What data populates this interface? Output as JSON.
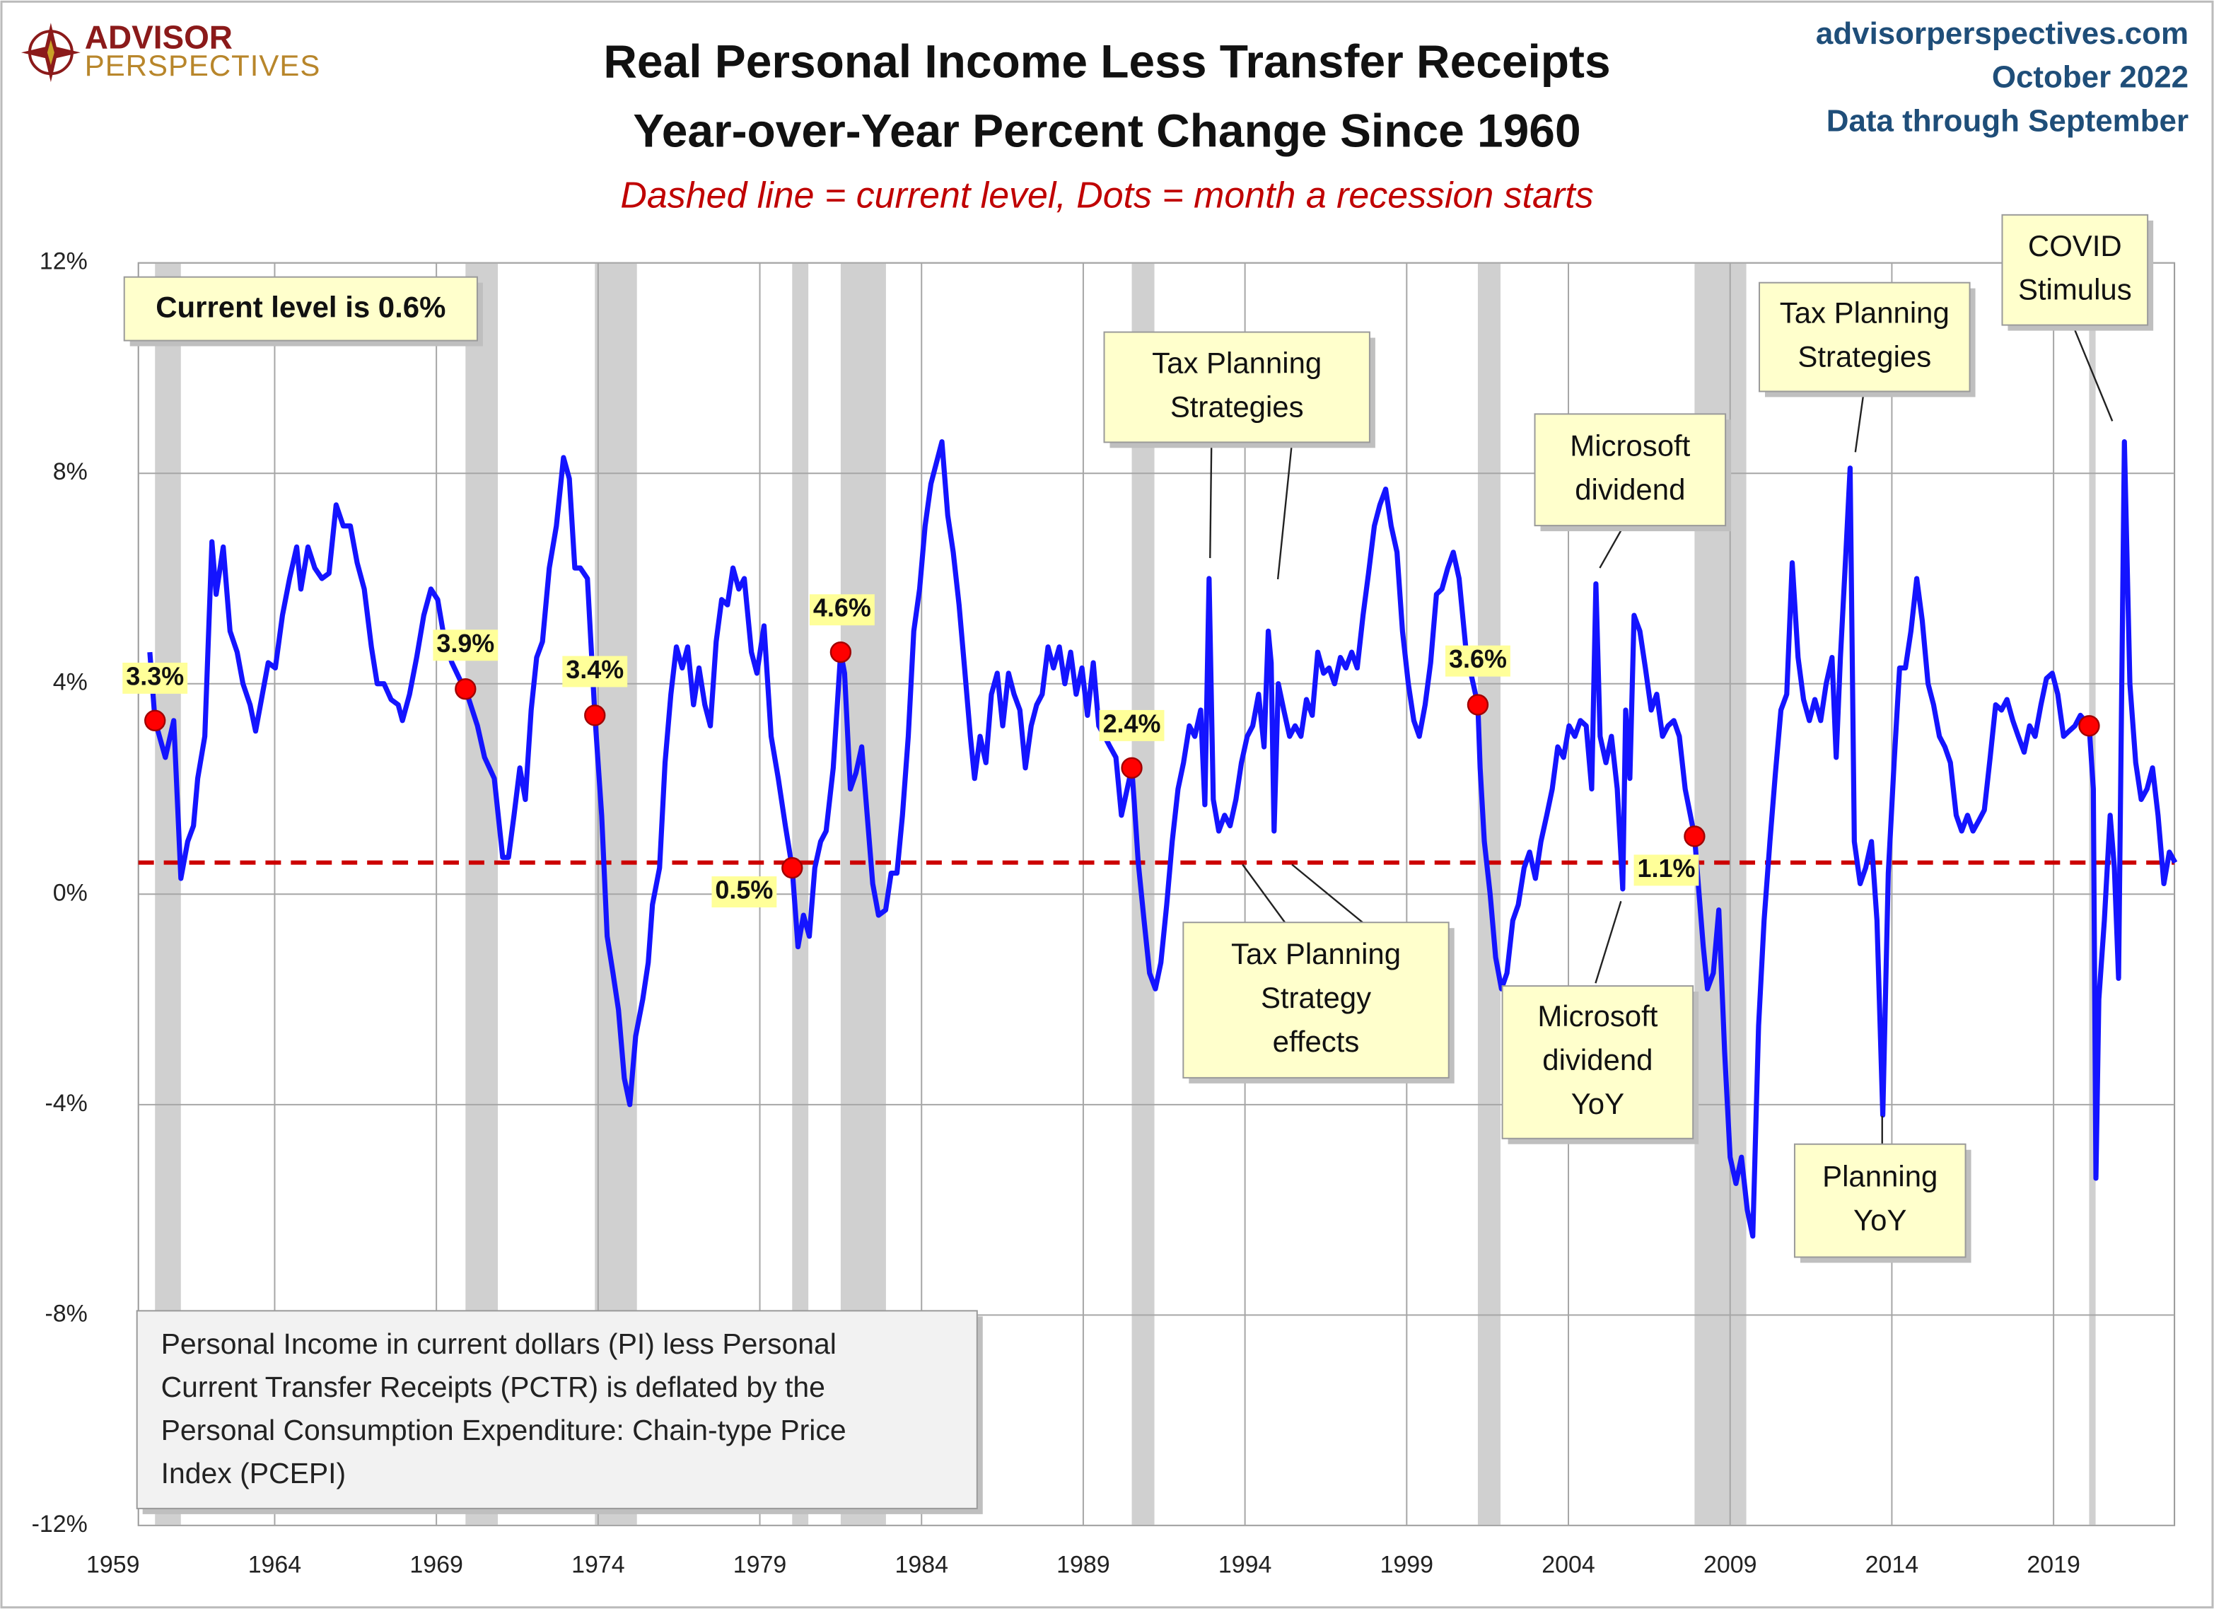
{
  "chart_data": {
    "type": "line",
    "logo": {
      "top": "ADVISOR",
      "bottom": "PERSPECTIVES"
    },
    "source": [
      "advisorperspectives.com",
      "October 2022",
      "Data through September"
    ],
    "title": [
      "Real Personal Income Less Transfer Receipts",
      "Year-over-Year Percent Change Since 1960"
    ],
    "subtitle": "Dashed line = current level, Dots = month a recession starts",
    "xlim": [
      1959,
      2023
    ],
    "ylim": [
      -12,
      12
    ],
    "xticks": [
      1959,
      1964,
      1969,
      1974,
      1979,
      1984,
      1989,
      1994,
      1999,
      2004,
      2009,
      2014,
      2019
    ],
    "yticks": [
      {
        "value": -12,
        "label": "-12%"
      },
      {
        "value": -8,
        "label": "-8%"
      },
      {
        "value": -4,
        "label": "-4%"
      },
      {
        "value": 0,
        "label": "0%"
      },
      {
        "value": 4,
        "label": "4%"
      },
      {
        "value": 8,
        "label": "8%"
      },
      {
        "value": 12,
        "label": "12%"
      }
    ],
    "grid": true,
    "x": [
      1960.14,
      1960.3,
      1960.62,
      1960.88,
      1961.1,
      1961.31,
      1961.49,
      1961.62,
      1961.84,
      1962.06,
      1962.19,
      1962.41,
      1962.62,
      1962.84,
      1963.02,
      1963.24,
      1963.41,
      1963.59,
      1963.8,
      1964.02,
      1964.24,
      1964.46,
      1964.68,
      1964.81,
      1965.03,
      1965.24,
      1965.46,
      1965.68,
      1965.9,
      1966.12,
      1966.34,
      1966.55,
      1966.77,
      1966.99,
      1967.17,
      1967.38,
      1967.6,
      1967.82,
      1967.95,
      1968.17,
      1968.39,
      1968.61,
      1968.83,
      1969.04,
      1969.26,
      1969.48,
      1969.79,
      1969.9,
      1970.27,
      1970.49,
      1970.79,
      1971.05,
      1971.23,
      1971.4,
      1971.58,
      1971.75,
      1971.93,
      1972.1,
      1972.28,
      1972.49,
      1972.71,
      1972.93,
      1973.11,
      1973.28,
      1973.45,
      1973.67,
      1973.9,
      1974.11,
      1974.28,
      1974.46,
      1974.63,
      1974.81,
      1974.98,
      1975.16,
      1975.38,
      1975.55,
      1975.68,
      1975.9,
      1976.07,
      1976.25,
      1976.42,
      1976.6,
      1976.77,
      1976.95,
      1977.12,
      1977.3,
      1977.47,
      1977.65,
      1977.82,
      1978.0,
      1978.17,
      1978.35,
      1978.52,
      1978.74,
      1978.91,
      1979.13,
      1979.35,
      1979.57,
      1979.79,
      1980.0,
      1980.18,
      1980.35,
      1980.53,
      1980.7,
      1980.88,
      1981.05,
      1981.27,
      1981.5,
      1981.62,
      1981.8,
      1981.97,
      1982.15,
      1982.32,
      1982.49,
      1982.67,
      1982.89,
      1983.06,
      1983.24,
      1983.41,
      1983.59,
      1983.76,
      1983.94,
      1984.11,
      1984.29,
      1984.46,
      1984.63,
      1984.81,
      1984.98,
      1985.16,
      1985.33,
      1985.51,
      1985.64,
      1985.81,
      1985.99,
      1986.16,
      1986.34,
      1986.51,
      1986.69,
      1986.86,
      1987.04,
      1987.21,
      1987.39,
      1987.56,
      1987.73,
      1987.91,
      1988.08,
      1988.26,
      1988.43,
      1988.61,
      1988.78,
      1988.96,
      1989.13,
      1989.31,
      1989.48,
      1989.66,
      1989.83,
      1990.01,
      1990.18,
      1990.5,
      1990.57,
      1990.7,
      1990.88,
      1991.05,
      1991.23,
      1991.4,
      1991.58,
      1991.75,
      1991.93,
      1992.1,
      1992.28,
      1992.45,
      1992.63,
      1992.76,
      1992.89,
      1993.02,
      1993.19,
      1993.37,
      1993.54,
      1993.72,
      1993.89,
      1994.07,
      1994.24,
      1994.42,
      1994.59,
      1994.72,
      1994.81,
      1994.9,
      1995.03,
      1995.2,
      1995.38,
      1995.55,
      1995.73,
      1995.9,
      1996.08,
      1996.25,
      1996.43,
      1996.6,
      1996.77,
      1996.95,
      1997.12,
      1997.3,
      1997.47,
      1997.65,
      1997.82,
      1998.0,
      1998.17,
      1998.35,
      1998.52,
      1998.7,
      1998.87,
      1999.05,
      1999.22,
      1999.39,
      1999.57,
      1999.74,
      1999.92,
      2000.09,
      2000.27,
      2000.44,
      2000.62,
      2000.84,
      2001.2,
      2001.27,
      2001.4,
      2001.58,
      2001.75,
      2001.93,
      2002.1,
      2002.28,
      2002.45,
      2002.63,
      2002.8,
      2002.98,
      2003.15,
      2003.33,
      2003.5,
      2003.67,
      2003.85,
      2004.02,
      2004.2,
      2004.37,
      2004.55,
      2004.72,
      2004.85,
      2004.98,
      2005.16,
      2005.33,
      2005.51,
      2005.68,
      2005.77,
      2005.9,
      2006.03,
      2006.21,
      2006.38,
      2006.56,
      2006.73,
      2006.91,
      2007.08,
      2007.26,
      2007.43,
      2007.61,
      2007.9,
      2008.04,
      2008.17,
      2008.3,
      2008.48,
      2008.65,
      2008.83,
      2009.0,
      2009.18,
      2009.35,
      2009.53,
      2009.7,
      2009.88,
      2010.05,
      2010.23,
      2010.4,
      2010.57,
      2010.75,
      2010.92,
      2011.1,
      2011.27,
      2011.45,
      2011.62,
      2011.8,
      2011.97,
      2012.15,
      2012.28,
      2012.41,
      2012.58,
      2012.71,
      2012.84,
      2013.02,
      2013.19,
      2013.37,
      2013.54,
      2013.72,
      2013.89,
      2014.07,
      2014.24,
      2014.42,
      2014.59,
      2014.77,
      2014.94,
      2015.12,
      2015.29,
      2015.47,
      2015.64,
      2015.81,
      2015.99,
      2016.16,
      2016.34,
      2016.51,
      2016.69,
      2016.86,
      2017.04,
      2017.21,
      2017.39,
      2017.56,
      2017.74,
      2017.91,
      2018.09,
      2018.26,
      2018.43,
      2018.61,
      2018.78,
      2018.96,
      2019.13,
      2019.31,
      2019.48,
      2019.66,
      2019.83,
      2020.1,
      2020.23,
      2020.31,
      2020.4,
      2020.57,
      2020.75,
      2020.88,
      2021.01,
      2021.19,
      2021.36,
      2021.54,
      2021.71,
      2021.89,
      2022.06,
      2022.23,
      2022.41,
      2022.58,
      2022.76
    ],
    "series": [
      {
        "color": "#1414ff",
        "values": [
          4.6,
          3.3,
          2.6,
          3.3,
          0.3,
          1.0,
          1.3,
          2.2,
          3.0,
          6.7,
          5.7,
          6.6,
          5.0,
          4.6,
          4.0,
          3.6,
          3.1,
          3.7,
          4.4,
          4.3,
          5.3,
          6.0,
          6.6,
          5.8,
          6.6,
          6.2,
          6.0,
          6.1,
          7.4,
          7.0,
          7.0,
          6.3,
          5.8,
          4.7,
          4.0,
          4.0,
          3.7,
          3.6,
          3.3,
          3.8,
          4.5,
          5.3,
          5.8,
          5.6,
          4.8,
          4.4,
          4.0,
          3.9,
          3.2,
          2.6,
          2.2,
          0.7,
          0.7,
          1.5,
          2.4,
          1.8,
          3.5,
          4.5,
          4.8,
          6.2,
          7.0,
          8.3,
          7.9,
          6.2,
          6.2,
          6.0,
          3.4,
          1.5,
          -0.8,
          -1.5,
          -2.2,
          -3.5,
          -4.0,
          -2.7,
          -2.0,
          -1.3,
          -0.2,
          0.5,
          2.5,
          3.8,
          4.7,
          4.3,
          4.7,
          3.6,
          4.3,
          3.6,
          3.2,
          4.8,
          5.6,
          5.5,
          6.2,
          5.8,
          6.0,
          4.6,
          4.2,
          5.1,
          3.0,
          2.2,
          1.3,
          0.5,
          -1.0,
          -0.4,
          -0.8,
          0.5,
          1.0,
          1.2,
          2.4,
          4.6,
          4.2,
          2.0,
          2.3,
          2.8,
          1.5,
          0.2,
          -0.4,
          -0.3,
          0.4,
          0.4,
          1.5,
          3.0,
          5.0,
          5.8,
          7.0,
          7.8,
          8.2,
          8.6,
          7.2,
          6.5,
          5.5,
          4.3,
          3.0,
          2.2,
          3.0,
          2.5,
          3.8,
          4.2,
          3.2,
          4.2,
          3.8,
          3.5,
          2.4,
          3.2,
          3.6,
          3.8,
          4.7,
          4.3,
          4.7,
          4.0,
          4.6,
          3.8,
          4.3,
          3.4,
          4.4,
          3.2,
          3.0,
          2.8,
          2.6,
          1.5,
          2.4,
          1.8,
          0.6,
          -0.5,
          -1.5,
          -1.8,
          -1.3,
          -0.2,
          1.0,
          2.0,
          2.5,
          3.2,
          3.0,
          3.5,
          1.7,
          6.0,
          1.8,
          1.2,
          1.5,
          1.3,
          1.8,
          2.5,
          3.0,
          3.2,
          3.8,
          2.8,
          5.0,
          4.4,
          1.2,
          4.0,
          3.5,
          3.0,
          3.2,
          3.0,
          3.7,
          3.4,
          4.6,
          4.2,
          4.3,
          4.0,
          4.5,
          4.3,
          4.6,
          4.3,
          5.3,
          6.1,
          7.0,
          7.4,
          7.7,
          7.0,
          6.5,
          5.0,
          4.0,
          3.3,
          3.0,
          3.6,
          4.4,
          5.7,
          5.8,
          6.2,
          6.5,
          6.0,
          4.6,
          3.6,
          2.4,
          1.0,
          0.0,
          -1.2,
          -1.8,
          -1.5,
          -0.5,
          -0.2,
          0.5,
          0.8,
          0.3,
          1.0,
          1.5,
          2.0,
          2.8,
          2.6,
          3.2,
          3.0,
          3.3,
          3.2,
          2.0,
          5.9,
          3.0,
          2.5,
          3.0,
          2.0,
          0.1,
          3.5,
          2.2,
          5.3,
          5.0,
          4.3,
          3.5,
          3.8,
          3.0,
          3.2,
          3.3,
          3.0,
          2.0,
          1.1,
          0.0,
          -1.0,
          -1.8,
          -1.5,
          -0.3,
          -3.0,
          -5.0,
          -5.5,
          -5.0,
          -6.0,
          -6.5,
          -2.5,
          -0.5,
          1.0,
          2.3,
          3.5,
          3.8,
          6.3,
          4.5,
          3.7,
          3.3,
          3.7,
          3.3,
          4.0,
          4.5,
          2.6,
          4.5,
          6.5,
          8.1,
          1.0,
          0.2,
          0.5,
          1.0,
          -0.5,
          -4.2,
          0.4,
          2.5,
          4.3,
          4.3,
          5.0,
          6.0,
          5.2,
          4.0,
          3.6,
          3.0,
          2.8,
          2.5,
          1.5,
          1.2,
          1.5,
          1.2,
          1.4,
          1.6,
          2.6,
          3.6,
          3.5,
          3.7,
          3.3,
          3.0,
          2.7,
          3.2,
          3.0,
          3.6,
          4.1,
          4.2,
          3.8,
          3.0,
          3.1,
          3.2,
          3.4,
          3.2,
          2.0,
          -5.4,
          -2.0,
          -0.5,
          1.5,
          0.5,
          -1.6,
          8.6,
          4.0,
          2.5,
          1.8,
          2.0,
          2.4,
          1.5,
          0.2,
          0.8,
          0.6
        ]
      }
    ],
    "recessions": [
      {
        "start": 1960.3,
        "end": 1961.1
      },
      {
        "start": 1969.9,
        "end": 1970.9
      },
      {
        "start": 1973.9,
        "end": 1975.2
      },
      {
        "start": 1980.0,
        "end": 1980.5
      },
      {
        "start": 1981.5,
        "end": 1982.9
      },
      {
        "start": 1990.5,
        "end": 1991.2
      },
      {
        "start": 2001.2,
        "end": 2001.9
      },
      {
        "start": 2007.9,
        "end": 2009.5
      },
      {
        "start": 2020.1,
        "end": 2020.3
      }
    ],
    "dots": {
      "color": "#ff0000",
      "x": [
        1960.3,
        1969.9,
        1973.9,
        1980.0,
        1981.5,
        1990.5,
        2001.2,
        2007.9,
        2020.1
      ],
      "values": [
        3.3,
        3.9,
        3.4,
        0.5,
        4.6,
        2.4,
        3.6,
        1.1,
        3.2
      ],
      "value_labels": [
        "3.3%",
        "3.9%",
        "3.4%",
        "0.5%",
        "4.6%",
        "2.4%",
        "3.6%",
        "1.1%",
        null
      ]
    },
    "current_level": 0.6,
    "current_level_color": "#cc0000",
    "current_level_label": "Current level is 0.6%",
    "annotations": [
      {
        "lines": [
          "Tax Planning",
          "Strategies"
        ]
      },
      {
        "lines": [
          "Microsoft",
          "dividend"
        ]
      },
      {
        "lines": [
          "Tax Planning",
          "Strategies"
        ]
      },
      {
        "lines": [
          "COVID",
          "Stimulus"
        ]
      },
      {
        "lines": [
          "Tax Planning",
          "Strategy",
          "effects"
        ]
      },
      {
        "lines": [
          "Microsoft",
          "dividend",
          "YoY"
        ]
      },
      {
        "lines": [
          "Planning",
          "YoY"
        ]
      }
    ],
    "note": [
      "Personal Income in current dollars  (PI) less Personal",
      "Current Transfer Receipts (PCTR) is deflated by the",
      "Personal Consumption Expenditure: Chain-type Price",
      "Index (PCEPI)"
    ]
  }
}
